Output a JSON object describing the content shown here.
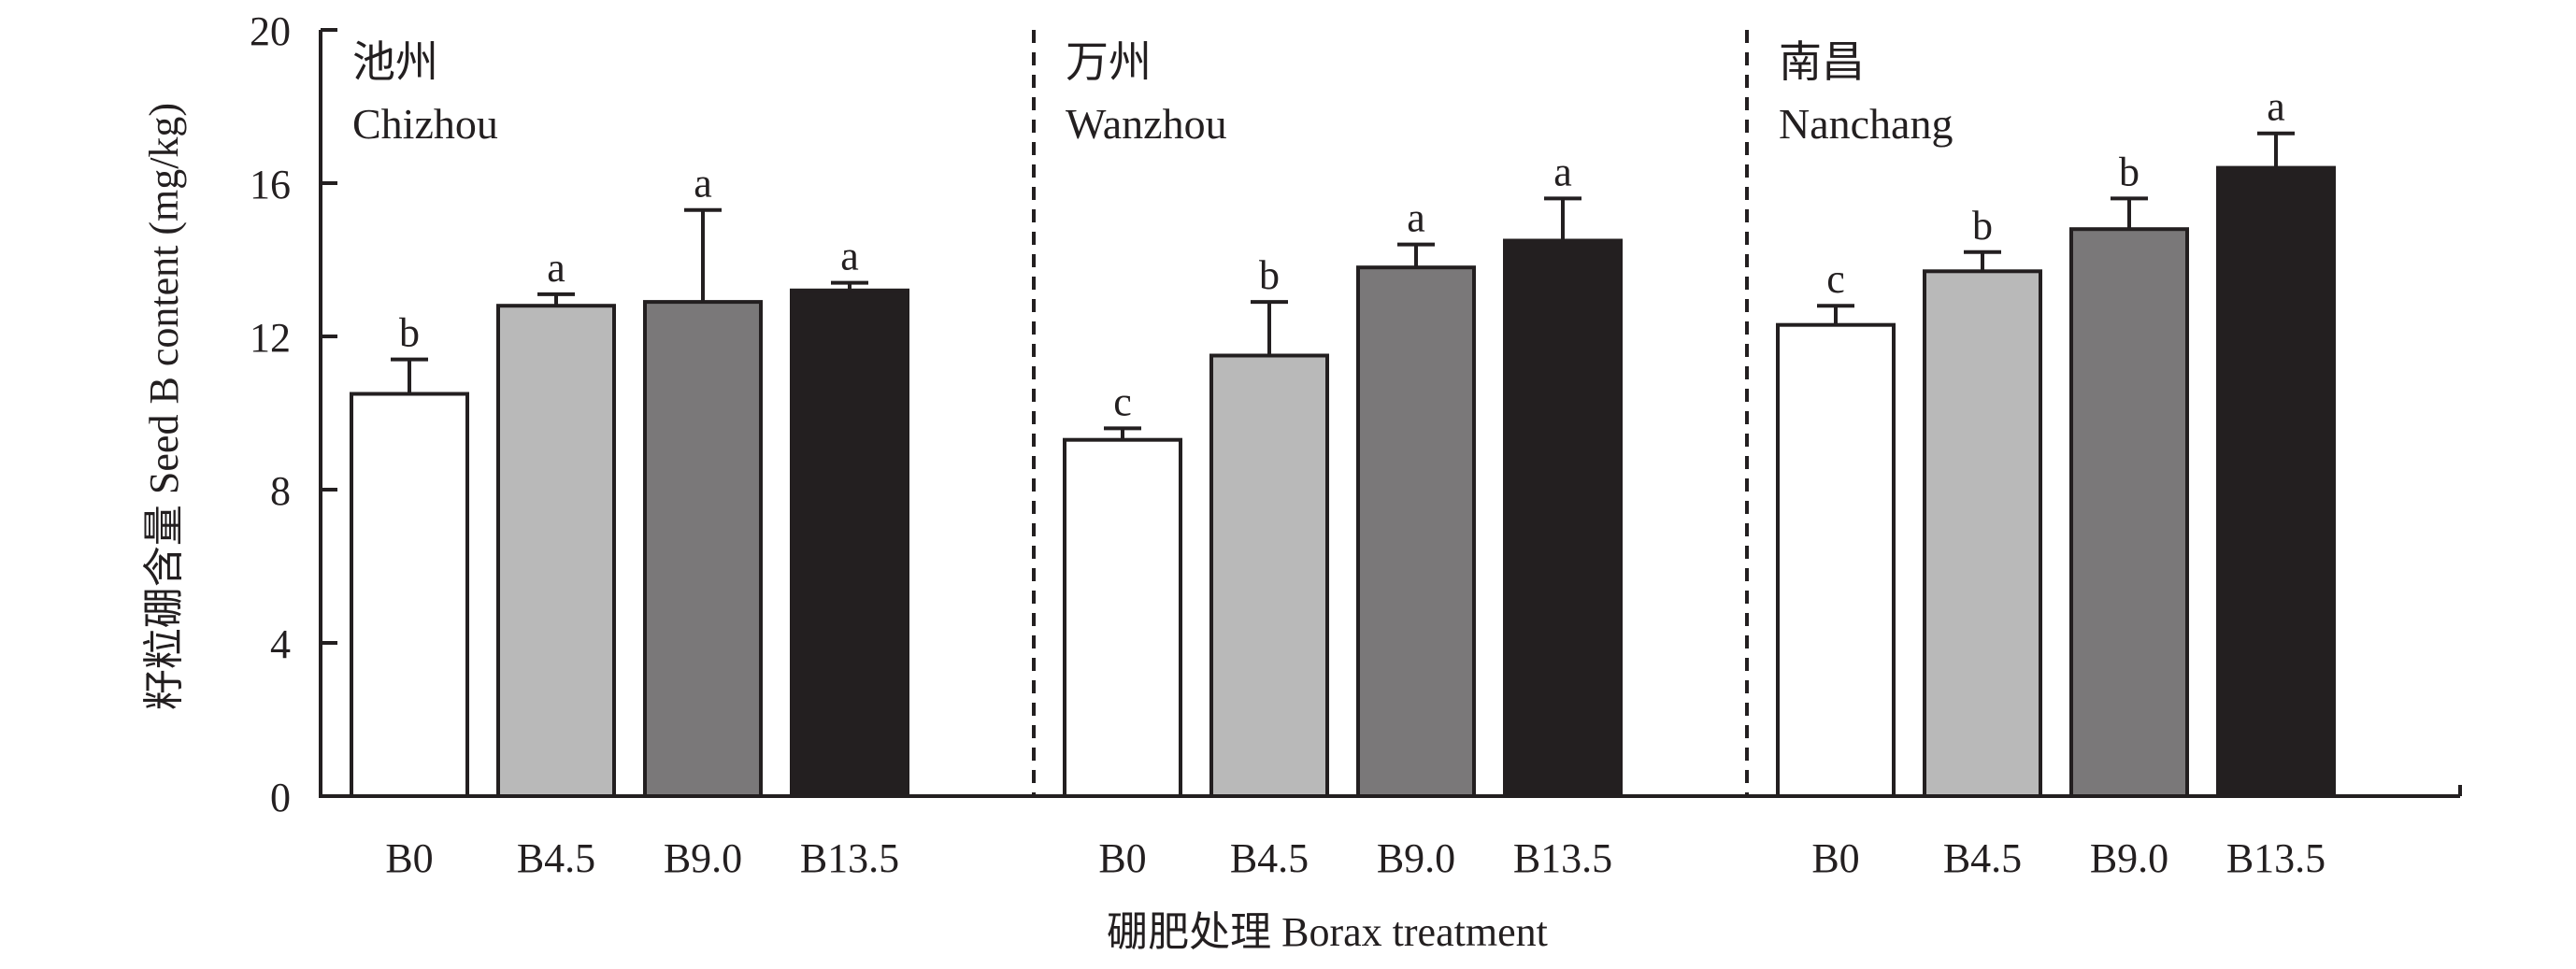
{
  "chart_data": {
    "type": "bar",
    "ylabel": "籽粒硼含量 Seed B content (mg/kg)",
    "xlabel": "硼肥处理 Borax treatment",
    "ylim": [
      0,
      20
    ],
    "yticks": [
      0,
      4,
      8,
      12,
      16,
      20
    ],
    "categories": [
      "B0",
      "B4.5",
      "B9.0",
      "B13.5"
    ],
    "bar_colors": [
      "#ffffff",
      "#b9b9b9",
      "#7a7879",
      "#231f20"
    ],
    "panels": [
      {
        "title_cn": "池州",
        "title_en": "Chizhou",
        "values": [
          10.5,
          12.8,
          12.9,
          13.2
        ],
        "errors": [
          0.9,
          0.3,
          2.4,
          0.2
        ],
        "letters": [
          "b",
          "a",
          "a",
          "a"
        ]
      },
      {
        "title_cn": "万州",
        "title_en": "Wanzhou",
        "values": [
          9.3,
          11.5,
          13.8,
          14.5
        ],
        "errors": [
          0.3,
          1.4,
          0.6,
          1.1
        ],
        "letters": [
          "c",
          "b",
          "a",
          "a"
        ]
      },
      {
        "title_cn": "南昌",
        "title_en": "Nanchang",
        "values": [
          12.3,
          13.7,
          14.8,
          16.4
        ],
        "errors": [
          0.5,
          0.5,
          0.8,
          0.9
        ],
        "letters": [
          "c",
          "b",
          "b",
          "a"
        ]
      }
    ]
  }
}
